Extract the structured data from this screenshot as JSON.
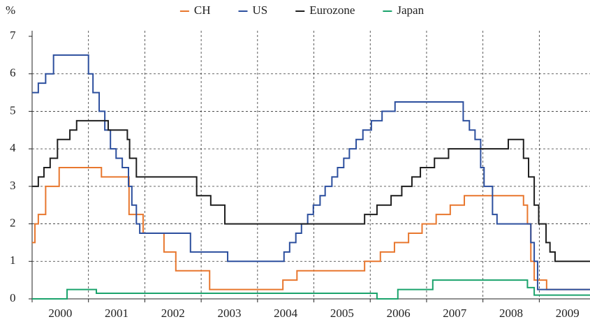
{
  "chart_data": {
    "type": "line",
    "step": true,
    "y_label": "%",
    "xlim": [
      2000,
      2009.9
    ],
    "ylim": [
      0,
      7
    ],
    "xticks": [
      2000,
      2001,
      2002,
      2003,
      2004,
      2005,
      2006,
      2007,
      2008,
      2009
    ],
    "yticks": [
      0,
      1,
      2,
      3,
      4,
      5,
      6,
      7
    ],
    "grid": true,
    "legend": "top",
    "series": [
      {
        "name": "CH",
        "color": "#e8772e",
        "x": [
          2000.0,
          2000.05,
          2000.11,
          2000.24,
          2000.48,
          2001.23,
          2001.72,
          2001.97,
          2002.34,
          2002.55,
          2003.15,
          2004.45,
          2004.7,
          2005.9,
          2006.18,
          2006.43,
          2006.68,
          2006.92,
          2007.17,
          2007.42,
          2007.67,
          2008.72,
          2008.79,
          2008.85,
          2008.91,
          2009.13,
          2009.9
        ],
        "values": [
          1.5,
          2.0,
          2.25,
          3.0,
          3.5,
          3.25,
          2.25,
          1.75,
          1.25,
          0.75,
          0.25,
          0.5,
          0.75,
          1.0,
          1.25,
          1.5,
          1.75,
          2.0,
          2.25,
          2.5,
          2.75,
          2.5,
          2.0,
          1.0,
          0.5,
          0.25,
          0.25
        ]
      },
      {
        "name": "US",
        "color": "#2c4f9e",
        "x": [
          2000.0,
          2000.11,
          2000.24,
          2000.38,
          2001.0,
          2001.08,
          2001.19,
          2001.29,
          2001.39,
          2001.49,
          2001.6,
          2001.71,
          2001.77,
          2001.85,
          2001.91,
          2002.81,
          2003.47,
          2004.47,
          2004.57,
          2004.68,
          2004.78,
          2004.89,
          2004.99,
          2005.11,
          2005.2,
          2005.32,
          2005.42,
          2005.53,
          2005.63,
          2005.75,
          2005.87,
          2006.02,
          2006.21,
          2006.44,
          2007.65,
          2007.76,
          2007.86,
          2007.96,
          2008.02,
          2008.17,
          2008.25,
          2008.85,
          2008.91,
          2008.97,
          2009.9
        ],
        "values": [
          5.5,
          5.75,
          6.0,
          6.5,
          6.0,
          5.5,
          5.0,
          4.5,
          4.0,
          3.75,
          3.5,
          3.0,
          2.5,
          2.0,
          1.75,
          1.25,
          1.0,
          1.25,
          1.5,
          1.75,
          2.0,
          2.25,
          2.5,
          2.75,
          3.0,
          3.25,
          3.5,
          3.75,
          4.0,
          4.25,
          4.5,
          4.75,
          5.0,
          5.25,
          4.75,
          4.5,
          4.25,
          3.5,
          3.0,
          2.25,
          2.0,
          1.5,
          1.0,
          0.25,
          0.25
        ]
      },
      {
        "name": "Eurozone",
        "color": "#1e1e1e",
        "x": [
          2000.0,
          2000.11,
          2000.21,
          2000.32,
          2000.45,
          2000.67,
          2000.79,
          2001.35,
          2001.69,
          2001.73,
          2001.85,
          2002.92,
          2003.17,
          2003.42,
          2005.9,
          2006.12,
          2006.37,
          2006.56,
          2006.74,
          2006.89,
          2007.14,
          2007.39,
          2008.45,
          2008.72,
          2008.81,
          2008.91,
          2008.99,
          2009.12,
          2009.19,
          2009.28,
          2009.9
        ],
        "values": [
          3.0,
          3.25,
          3.5,
          3.75,
          4.25,
          4.5,
          4.75,
          4.5,
          4.25,
          3.75,
          3.25,
          2.75,
          2.5,
          2.0,
          2.25,
          2.5,
          2.75,
          3.0,
          3.25,
          3.5,
          3.75,
          4.0,
          4.25,
          3.75,
          3.25,
          2.5,
          2.0,
          1.5,
          1.25,
          1.0,
          1.0
        ]
      },
      {
        "name": "Japan",
        "color": "#1ba36c",
        "x": [
          2000.0,
          2000.62,
          2001.14,
          2006.12,
          2006.49,
          2007.11,
          2008.79,
          2008.91,
          2009.9
        ],
        "values": [
          0,
          0.25,
          0.15,
          0,
          0.25,
          0.5,
          0.3,
          0.1,
          0.1
        ]
      }
    ]
  }
}
